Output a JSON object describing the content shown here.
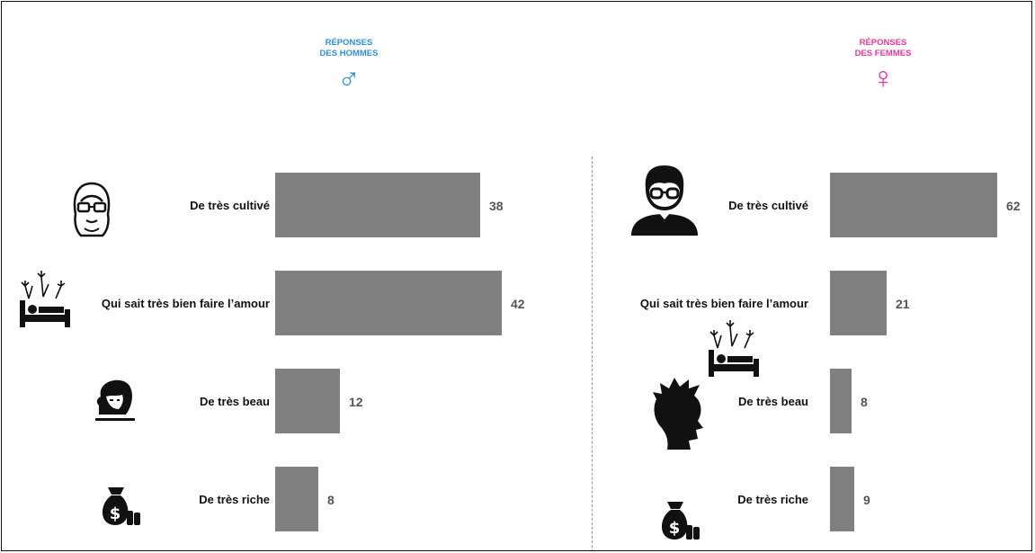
{
  "colors": {
    "men": "#2f8fd6",
    "women": "#e8379a",
    "bar": "#808080"
  },
  "chart_data": [
    {
      "type": "bar",
      "orientation": "horizontal",
      "header_lines": [
        "RÉPONSES",
        "DES HOMMES"
      ],
      "symbol": "♂",
      "categories": [
        "De très cultivé",
        "Qui sait très bien faire l’amour",
        "De très beau",
        "De très riche"
      ],
      "values": [
        38,
        42,
        12,
        8
      ],
      "icons": [
        "woman-glasses-icon",
        "bed-fireworks-icon",
        "woman-face-icon",
        "money-bag-icon"
      ]
    },
    {
      "type": "bar",
      "orientation": "horizontal",
      "header_lines": [
        "RÉPONSES",
        "DES FEMMES"
      ],
      "symbol": "♀",
      "categories": [
        "De très cultivé",
        "Qui sait très bien faire l’amour",
        "De très beau",
        "De très riche"
      ],
      "values": [
        62,
        21,
        8,
        9
      ],
      "icons": [
        "man-glasses-icon",
        "bed-fireworks-icon",
        "man-silhouette-icon",
        "money-bag-icon"
      ]
    }
  ]
}
